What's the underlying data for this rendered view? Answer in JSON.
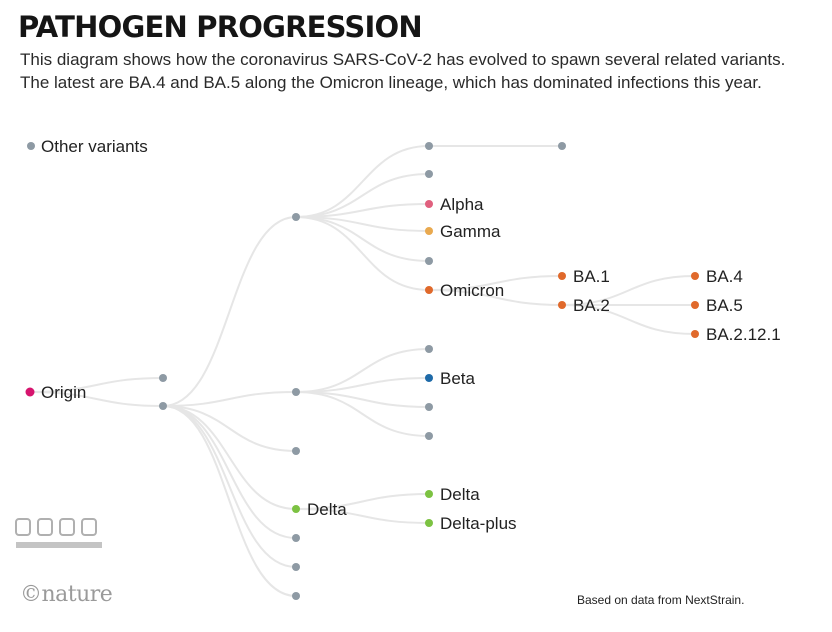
{
  "title": "PATHOGEN PROGRESSION",
  "subtitle": "This diagram shows how the coronavirus SARS-CoV-2 has evolved to spawn several related variants. The latest are BA.4 and BA.5 along the Omicron lineage, which has dominated infections this year.",
  "legend": {
    "label": "Other variants"
  },
  "footer": {
    "brand": "©nature",
    "source": "Based on data from NextStrain."
  },
  "colors": {
    "other": "#8e9aa4",
    "origin": "#d6146e",
    "alpha": "#e0607e",
    "gamma": "#e9a94f",
    "omicron": "#e0692b",
    "beta": "#1e6aa8",
    "delta": "#7cc242",
    "link": "#e6e6e6"
  },
  "nodes": [
    {
      "id": "origin",
      "label": "Origin",
      "color": "origin"
    },
    {
      "id": "n1",
      "label": "",
      "color": "other"
    },
    {
      "id": "n2",
      "label": "",
      "color": "other"
    },
    {
      "id": "a1",
      "label": "",
      "color": "other"
    },
    {
      "id": "a2",
      "label": "",
      "color": "other"
    },
    {
      "id": "a3",
      "label": "",
      "color": "other"
    },
    {
      "id": "a4",
      "label": "Delta",
      "color": "delta"
    },
    {
      "id": "a5",
      "label": "",
      "color": "other"
    },
    {
      "id": "a6",
      "label": "",
      "color": "other"
    },
    {
      "id": "a7",
      "label": "",
      "color": "other"
    },
    {
      "id": "b1",
      "label": "",
      "color": "other"
    },
    {
      "id": "b2",
      "label": "",
      "color": "other"
    },
    {
      "id": "alpha",
      "label": "Alpha",
      "color": "alpha"
    },
    {
      "id": "gamma",
      "label": "Gamma",
      "color": "gamma"
    },
    {
      "id": "b5",
      "label": "",
      "color": "other"
    },
    {
      "id": "omicron",
      "label": "Omicron",
      "color": "omicron"
    },
    {
      "id": "b1end",
      "label": "",
      "color": "other"
    },
    {
      "id": "ba1",
      "label": "BA.1",
      "color": "omicron"
    },
    {
      "id": "ba2",
      "label": "BA.2",
      "color": "omicron"
    },
    {
      "id": "ba4",
      "label": "BA.4",
      "color": "omicron"
    },
    {
      "id": "ba5",
      "label": "BA.5",
      "color": "omicron"
    },
    {
      "id": "ba2121",
      "label": "BA.2.12.1",
      "color": "omicron"
    },
    {
      "id": "c1",
      "label": "",
      "color": "other"
    },
    {
      "id": "beta",
      "label": "Beta",
      "color": "beta"
    },
    {
      "id": "c3",
      "label": "",
      "color": "other"
    },
    {
      "id": "c4",
      "label": "",
      "color": "other"
    },
    {
      "id": "delta2",
      "label": "Delta",
      "color": "delta"
    },
    {
      "id": "deltaplus",
      "label": "Delta-plus",
      "color": "delta"
    }
  ],
  "edges": [
    [
      "origin",
      "n1"
    ],
    [
      "origin",
      "n2"
    ],
    [
      "n2",
      "a1"
    ],
    [
      "n2",
      "a2"
    ],
    [
      "n2",
      "a3"
    ],
    [
      "n2",
      "a4"
    ],
    [
      "n2",
      "a5"
    ],
    [
      "n2",
      "a6"
    ],
    [
      "n2",
      "a7"
    ],
    [
      "a1",
      "b1"
    ],
    [
      "a1",
      "b2"
    ],
    [
      "a1",
      "alpha"
    ],
    [
      "a1",
      "gamma"
    ],
    [
      "a1",
      "b5"
    ],
    [
      "a1",
      "omicron"
    ],
    [
      "b1",
      "b1end"
    ],
    [
      "omicron",
      "ba1"
    ],
    [
      "omicron",
      "ba2"
    ],
    [
      "ba2",
      "ba4"
    ],
    [
      "ba2",
      "ba5"
    ],
    [
      "ba2",
      "ba2121"
    ],
    [
      "a2",
      "c1"
    ],
    [
      "a2",
      "beta"
    ],
    [
      "a2",
      "c3"
    ],
    [
      "a2",
      "c4"
    ],
    [
      "a4",
      "delta2"
    ],
    [
      "a4",
      "deltaplus"
    ]
  ]
}
